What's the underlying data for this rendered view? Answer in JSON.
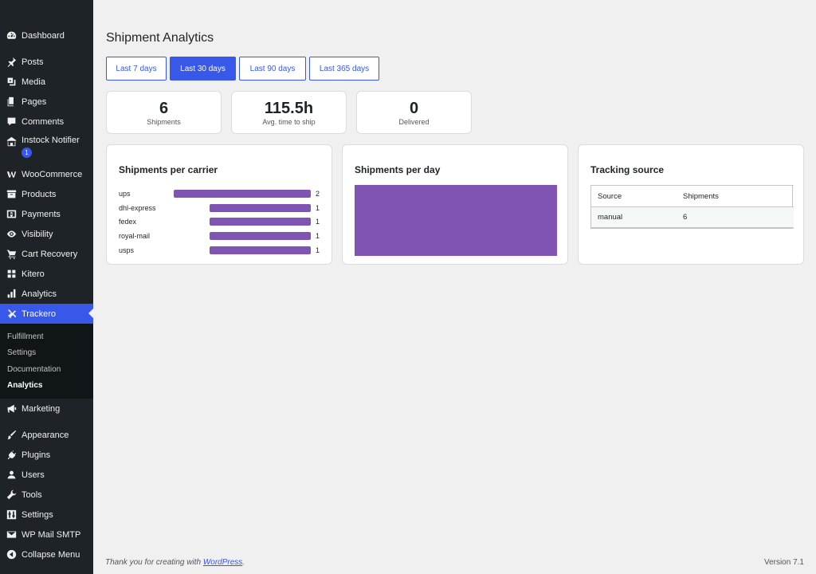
{
  "sidebar": {
    "items": [
      {
        "label": "Dashboard",
        "icon": "dashboard-icon"
      },
      {
        "label": "Posts",
        "icon": "pin-icon"
      },
      {
        "label": "Media",
        "icon": "media-icon"
      },
      {
        "label": "Pages",
        "icon": "pages-icon"
      },
      {
        "label": "Comments",
        "icon": "comments-icon"
      },
      {
        "label": "Instock Notifier",
        "icon": "store-icon",
        "badge": "1"
      },
      {
        "label": "WooCommerce",
        "icon": "woocommerce-icon"
      },
      {
        "label": "Products",
        "icon": "archive-icon"
      },
      {
        "label": "Payments",
        "icon": "dollar-icon"
      },
      {
        "label": "Visibility",
        "icon": "eye-icon"
      },
      {
        "label": "Cart Recovery",
        "icon": "cart-icon"
      },
      {
        "label": "Kitero",
        "icon": "grid-icon"
      },
      {
        "label": "Analytics",
        "icon": "bar-chart-icon"
      },
      {
        "label": "Trackero",
        "icon": "plane-icon"
      },
      {
        "label": "Marketing",
        "icon": "megaphone-icon"
      },
      {
        "label": "Appearance",
        "icon": "brush-icon"
      },
      {
        "label": "Plugins",
        "icon": "plug-icon"
      },
      {
        "label": "Users",
        "icon": "user-icon"
      },
      {
        "label": "Tools",
        "icon": "wrench-icon"
      },
      {
        "label": "Settings",
        "icon": "settings-icon"
      },
      {
        "label": "WP Mail SMTP",
        "icon": "mail-icon"
      },
      {
        "label": "Collapse Menu",
        "icon": "collapse-icon"
      }
    ],
    "submenu": [
      "Fulfillment",
      "Settings",
      "Documentation",
      "Analytics"
    ],
    "active": "Trackero",
    "current_sub": "Analytics"
  },
  "page": {
    "title": "Shipment Analytics",
    "tabs": [
      "Last 7 days",
      "Last 30 days",
      "Last 90 days",
      "Last 365 days"
    ],
    "active_tab": "Last 30 days"
  },
  "stats": [
    {
      "value": "6",
      "label": "Shipments"
    },
    {
      "value": "115.5h",
      "label": "Avg. time to ship"
    },
    {
      "value": "0",
      "label": "Delivered"
    }
  ],
  "carrier_card": {
    "title": "Shipments per carrier",
    "rows": [
      {
        "carrier": "ups",
        "count": 2
      },
      {
        "carrier": "dhl-express",
        "count": 1
      },
      {
        "carrier": "fedex",
        "count": 1
      },
      {
        "carrier": "royal-mail",
        "count": 1
      },
      {
        "carrier": "usps",
        "count": 1
      }
    ],
    "max": 2,
    "bar_color": "#7f54b3"
  },
  "day_card": {
    "title": "Shipments per day",
    "fill_color": "#7f54b3"
  },
  "source_card": {
    "title": "Tracking source",
    "headers": [
      "Source",
      "Shipments"
    ],
    "rows": [
      [
        "manual",
        "6"
      ]
    ]
  },
  "footer": {
    "text": "Thank you for creating with ",
    "link": "WordPress",
    "after": ".",
    "version": "Version 7.1"
  },
  "colors": {
    "accent": "#3858e9",
    "sidebar": "#1d2327",
    "bar": "#7f54b3"
  }
}
